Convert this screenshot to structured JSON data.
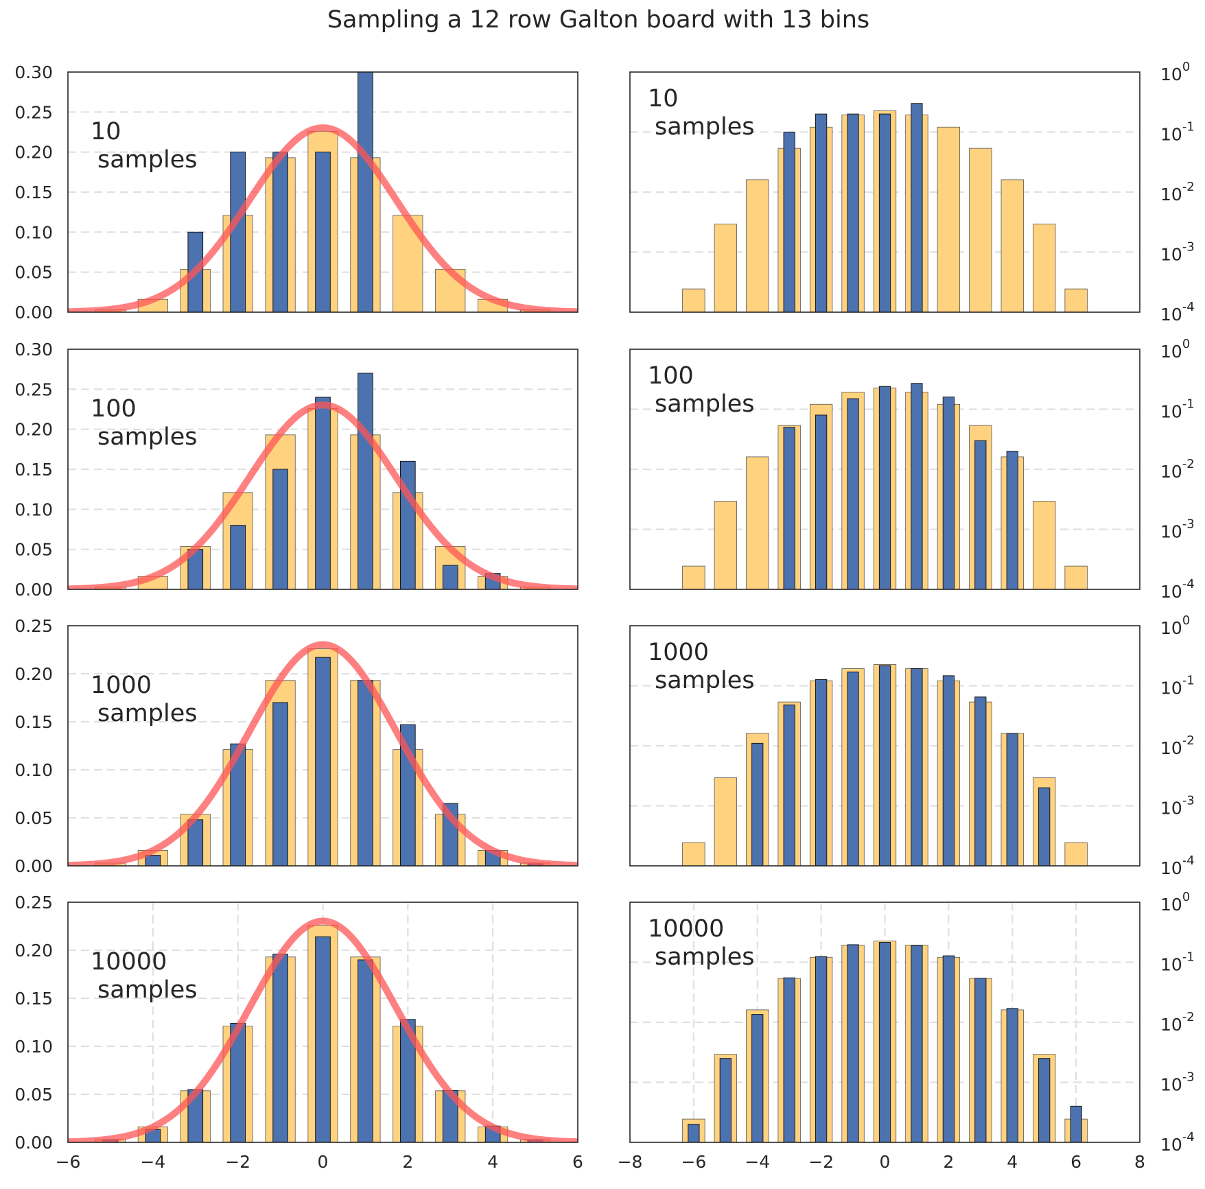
{
  "title": "Sampling a 12 row Galton board with 13 bins",
  "colors": {
    "expected": "#ffd27f",
    "sampled": "#4c72b0",
    "curve": "#ff5555",
    "grid": "#e0e0e0",
    "axes": "#262626"
  },
  "chart_data": [
    {
      "type": "bar",
      "panel": "10-linear",
      "annotation": [
        "10",
        "samples"
      ],
      "yscale": "linear",
      "xlim": [
        -6,
        6
      ],
      "ylim": [
        0,
        0.3
      ],
      "yticks": [
        "0.00",
        "0.05",
        "0.10",
        "0.15",
        "0.20",
        "0.25",
        "0.30"
      ],
      "xticks": [],
      "grid": "y",
      "expected": {
        "x": [
          -6,
          -5,
          -4,
          -3,
          -2,
          -1,
          0,
          1,
          2,
          3,
          4,
          5,
          6
        ],
        "values": [
          0.000244,
          0.00293,
          0.0161,
          0.0537,
          0.121,
          0.193,
          0.226,
          0.193,
          0.121,
          0.0537,
          0.0161,
          0.00293,
          0.000244
        ]
      },
      "sampled": {
        "x": [
          -6,
          -5,
          -4,
          -3,
          -2,
          -1,
          0,
          1,
          2,
          3,
          4,
          5,
          6
        ],
        "values": [
          0,
          0,
          0,
          0.1,
          0.2,
          0.2,
          0.2,
          0.3,
          0,
          0,
          0,
          0,
          0
        ]
      },
      "curve": {
        "mean": 0,
        "std": 1.732
      }
    },
    {
      "type": "bar",
      "panel": "10-log",
      "annotation": [
        "10",
        "samples"
      ],
      "yscale": "log",
      "xlim": [
        -8,
        8
      ],
      "ylim": [
        0.0001,
        1
      ],
      "yticks": [
        {
          "base": "10",
          "exp": "0"
        },
        {
          "base": "10",
          "exp": "-1"
        },
        {
          "base": "10",
          "exp": "-2"
        },
        {
          "base": "10",
          "exp": "-3"
        },
        {
          "base": "10",
          "exp": "-4"
        }
      ],
      "xticks": [],
      "grid": "y",
      "expected": {
        "x": [
          -6,
          -5,
          -4,
          -3,
          -2,
          -1,
          0,
          1,
          2,
          3,
          4,
          5,
          6
        ],
        "values": [
          0.000244,
          0.00293,
          0.0161,
          0.0537,
          0.121,
          0.193,
          0.226,
          0.193,
          0.121,
          0.0537,
          0.0161,
          0.00293,
          0.000244
        ]
      },
      "sampled": {
        "x": [
          -6,
          -5,
          -4,
          -3,
          -2,
          -1,
          0,
          1,
          2,
          3,
          4,
          5,
          6
        ],
        "values": [
          0,
          0,
          0,
          0.1,
          0.2,
          0.2,
          0.2,
          0.3,
          0,
          0,
          0,
          0,
          0
        ]
      }
    },
    {
      "type": "bar",
      "panel": "100-linear",
      "annotation": [
        "100",
        "samples"
      ],
      "yscale": "linear",
      "xlim": [
        -6,
        6
      ],
      "ylim": [
        0,
        0.3
      ],
      "yticks": [
        "0.00",
        "0.05",
        "0.10",
        "0.15",
        "0.20",
        "0.25",
        "0.30"
      ],
      "xticks": [],
      "grid": "y",
      "expected": {
        "x": [
          -6,
          -5,
          -4,
          -3,
          -2,
          -1,
          0,
          1,
          2,
          3,
          4,
          5,
          6
        ],
        "values": [
          0.000244,
          0.00293,
          0.0161,
          0.0537,
          0.121,
          0.193,
          0.226,
          0.193,
          0.121,
          0.0537,
          0.0161,
          0.00293,
          0.000244
        ]
      },
      "sampled": {
        "x": [
          -6,
          -5,
          -4,
          -3,
          -2,
          -1,
          0,
          1,
          2,
          3,
          4,
          5,
          6
        ],
        "values": [
          0,
          0,
          0,
          0.05,
          0.08,
          0.15,
          0.24,
          0.27,
          0.16,
          0.03,
          0.02,
          0,
          0
        ]
      },
      "curve": {
        "mean": 0,
        "std": 1.732
      }
    },
    {
      "type": "bar",
      "panel": "100-log",
      "annotation": [
        "100",
        "samples"
      ],
      "yscale": "log",
      "xlim": [
        -8,
        8
      ],
      "ylim": [
        0.0001,
        1
      ],
      "yticks": [
        {
          "base": "10",
          "exp": "0"
        },
        {
          "base": "10",
          "exp": "-1"
        },
        {
          "base": "10",
          "exp": "-2"
        },
        {
          "base": "10",
          "exp": "-3"
        },
        {
          "base": "10",
          "exp": "-4"
        }
      ],
      "xticks": [],
      "grid": "y",
      "expected": {
        "x": [
          -6,
          -5,
          -4,
          -3,
          -2,
          -1,
          0,
          1,
          2,
          3,
          4,
          5,
          6
        ],
        "values": [
          0.000244,
          0.00293,
          0.0161,
          0.0537,
          0.121,
          0.193,
          0.226,
          0.193,
          0.121,
          0.0537,
          0.0161,
          0.00293,
          0.000244
        ]
      },
      "sampled": {
        "x": [
          -6,
          -5,
          -4,
          -3,
          -2,
          -1,
          0,
          1,
          2,
          3,
          4,
          5,
          6
        ],
        "values": [
          0,
          0,
          0,
          0.05,
          0.08,
          0.15,
          0.24,
          0.27,
          0.16,
          0.03,
          0.02,
          0,
          0
        ]
      }
    },
    {
      "type": "bar",
      "panel": "1000-linear",
      "annotation": [
        "1000",
        "samples"
      ],
      "yscale": "linear",
      "xlim": [
        -6,
        6
      ],
      "ylim": [
        0,
        0.25
      ],
      "yticks": [
        "0.00",
        "0.05",
        "0.10",
        "0.15",
        "0.20",
        "0.25"
      ],
      "xticks": [],
      "grid": "y",
      "expected": {
        "x": [
          -6,
          -5,
          -4,
          -3,
          -2,
          -1,
          0,
          1,
          2,
          3,
          4,
          5,
          6
        ],
        "values": [
          0.000244,
          0.00293,
          0.0161,
          0.0537,
          0.121,
          0.193,
          0.226,
          0.193,
          0.121,
          0.0537,
          0.0161,
          0.00293,
          0.000244
        ]
      },
      "sampled": {
        "x": [
          -6,
          -5,
          -4,
          -3,
          -2,
          -1,
          0,
          1,
          2,
          3,
          4,
          5,
          6
        ],
        "values": [
          0,
          0,
          0.011,
          0.048,
          0.127,
          0.17,
          0.217,
          0.193,
          0.147,
          0.065,
          0.016,
          0.002,
          0
        ]
      },
      "curve": {
        "mean": 0,
        "std": 1.732
      }
    },
    {
      "type": "bar",
      "panel": "1000-log",
      "annotation": [
        "1000",
        "samples"
      ],
      "yscale": "log",
      "xlim": [
        -8,
        8
      ],
      "ylim": [
        0.0001,
        1
      ],
      "yticks": [
        {
          "base": "10",
          "exp": "0"
        },
        {
          "base": "10",
          "exp": "-1"
        },
        {
          "base": "10",
          "exp": "-2"
        },
        {
          "base": "10",
          "exp": "-3"
        },
        {
          "base": "10",
          "exp": "-4"
        }
      ],
      "xticks": [],
      "grid": "y",
      "expected": {
        "x": [
          -6,
          -5,
          -4,
          -3,
          -2,
          -1,
          0,
          1,
          2,
          3,
          4,
          5,
          6
        ],
        "values": [
          0.000244,
          0.00293,
          0.0161,
          0.0537,
          0.121,
          0.193,
          0.226,
          0.193,
          0.121,
          0.0537,
          0.0161,
          0.00293,
          0.000244
        ]
      },
      "sampled": {
        "x": [
          -6,
          -5,
          -4,
          -3,
          -2,
          -1,
          0,
          1,
          2,
          3,
          4,
          5,
          6
        ],
        "values": [
          0,
          0,
          0.011,
          0.048,
          0.127,
          0.17,
          0.217,
          0.193,
          0.147,
          0.065,
          0.016,
          0.002,
          0
        ]
      }
    },
    {
      "type": "bar",
      "panel": "10000-linear",
      "annotation": [
        "10000",
        "samples"
      ],
      "yscale": "linear",
      "xlim": [
        -6,
        6
      ],
      "ylim": [
        0,
        0.25
      ],
      "yticks": [
        "0.00",
        "0.05",
        "0.10",
        "0.15",
        "0.20",
        "0.25"
      ],
      "xticks": [
        "−6",
        "−4",
        "−2",
        "0",
        "2",
        "4",
        "6"
      ],
      "xtick_values": [
        -6,
        -4,
        -2,
        0,
        2,
        4,
        6
      ],
      "grid": "xy",
      "expected": {
        "x": [
          -6,
          -5,
          -4,
          -3,
          -2,
          -1,
          0,
          1,
          2,
          3,
          4,
          5,
          6
        ],
        "values": [
          0.000244,
          0.00293,
          0.0161,
          0.0537,
          0.121,
          0.193,
          0.226,
          0.193,
          0.121,
          0.0537,
          0.0161,
          0.00293,
          0.000244
        ]
      },
      "sampled": {
        "x": [
          -6,
          -5,
          -4,
          -3,
          -2,
          -1,
          0,
          1,
          2,
          3,
          4,
          5,
          6
        ],
        "values": [
          0.0002,
          0.0025,
          0.0135,
          0.055,
          0.124,
          0.196,
          0.214,
          0.19,
          0.128,
          0.054,
          0.017,
          0.0025,
          0.0004
        ]
      },
      "curve": {
        "mean": 0,
        "std": 1.732
      }
    },
    {
      "type": "bar",
      "panel": "10000-log",
      "annotation": [
        "10000",
        "samples"
      ],
      "yscale": "log",
      "xlim": [
        -8,
        8
      ],
      "ylim": [
        0.0001,
        1
      ],
      "yticks": [
        {
          "base": "10",
          "exp": "0"
        },
        {
          "base": "10",
          "exp": "-1"
        },
        {
          "base": "10",
          "exp": "-2"
        },
        {
          "base": "10",
          "exp": "-3"
        },
        {
          "base": "10",
          "exp": "-4"
        }
      ],
      "xticks": [
        "−8",
        "−6",
        "−4",
        "−2",
        "0",
        "2",
        "4",
        "6",
        "8"
      ],
      "xtick_values": [
        -8,
        -6,
        -4,
        -2,
        0,
        2,
        4,
        6,
        8
      ],
      "grid": "xy",
      "expected": {
        "x": [
          -6,
          -5,
          -4,
          -3,
          -2,
          -1,
          0,
          1,
          2,
          3,
          4,
          5,
          6
        ],
        "values": [
          0.000244,
          0.00293,
          0.0161,
          0.0537,
          0.121,
          0.193,
          0.226,
          0.193,
          0.121,
          0.0537,
          0.0161,
          0.00293,
          0.000244
        ]
      },
      "sampled": {
        "x": [
          -6,
          -5,
          -4,
          -3,
          -2,
          -1,
          0,
          1,
          2,
          3,
          4,
          5,
          6
        ],
        "values": [
          0.0002,
          0.0025,
          0.0135,
          0.055,
          0.124,
          0.196,
          0.214,
          0.19,
          0.128,
          0.054,
          0.017,
          0.0025,
          0.0004
        ]
      }
    }
  ]
}
